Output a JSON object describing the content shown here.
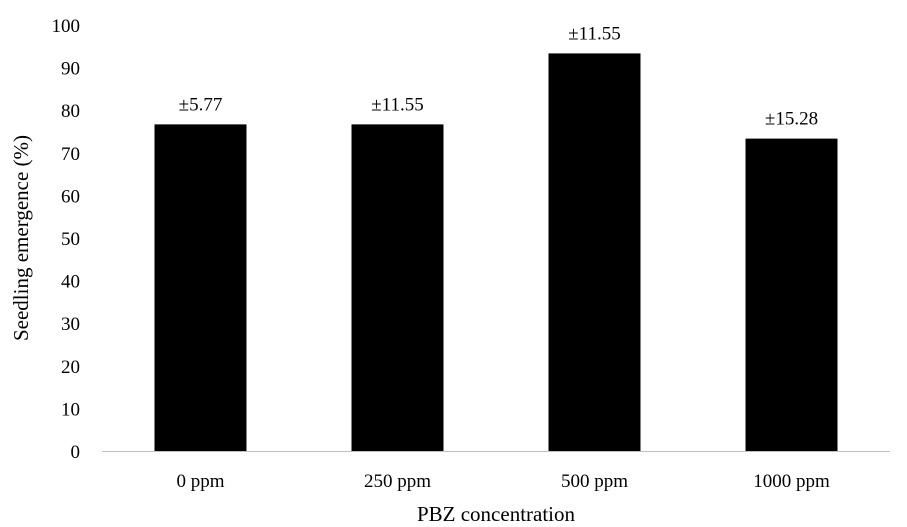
{
  "chart_data": {
    "type": "bar",
    "title": "",
    "xlabel": "PBZ concentration",
    "ylabel": "Seedling emergence (%)",
    "categories": [
      "0 ppm",
      "250 ppm",
      "500 ppm",
      "1000 ppm"
    ],
    "values": [
      76.67,
      76.67,
      93.33,
      73.33
    ],
    "error_labels": [
      "±5.77",
      "±11.55",
      "±11.55",
      "±15.28"
    ],
    "ylim": [
      0,
      100
    ],
    "yticks": [
      0,
      10,
      20,
      30,
      40,
      50,
      60,
      70,
      80,
      90,
      100
    ],
    "grid": false,
    "legend": "none",
    "bar_color": "#000000"
  }
}
